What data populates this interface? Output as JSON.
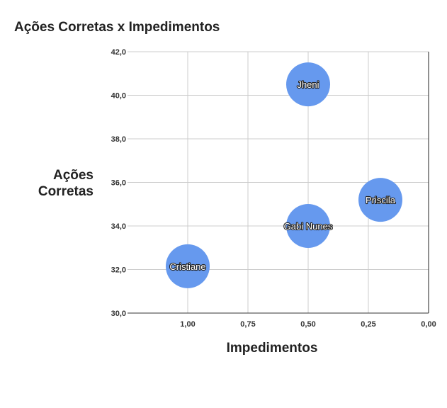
{
  "chart_data": {
    "type": "scatter",
    "title": "Ações Corretas x Impedimentos",
    "xlabel": "Impedimentos",
    "ylabel_lines": [
      "Ações",
      "Corretas"
    ],
    "x_axis_reversed": true,
    "xlim": [
      0,
      1.25
    ],
    "ylim": [
      30,
      42
    ],
    "xticks": [
      1.0,
      0.75,
      0.5,
      0.25,
      0.0
    ],
    "xtick_labels": [
      "1,00",
      "0,75",
      "0,50",
      "0,25",
      "0,00"
    ],
    "yticks": [
      30,
      32,
      34,
      36,
      38,
      40,
      42
    ],
    "ytick_labels": [
      "30,0",
      "32,0",
      "34,0",
      "36,0",
      "38,0",
      "40,0",
      "42,0"
    ],
    "grid": true,
    "point_color": "#6699ee",
    "points": [
      {
        "label": "Jheni",
        "x": 0.5,
        "y": 40.5
      },
      {
        "label": "Priscila",
        "x": 0.2,
        "y": 35.2
      },
      {
        "label": "Gabi Nunes",
        "x": 0.5,
        "y": 34.0
      },
      {
        "label": "Cristiane",
        "x": 1.0,
        "y": 32.15
      }
    ]
  }
}
